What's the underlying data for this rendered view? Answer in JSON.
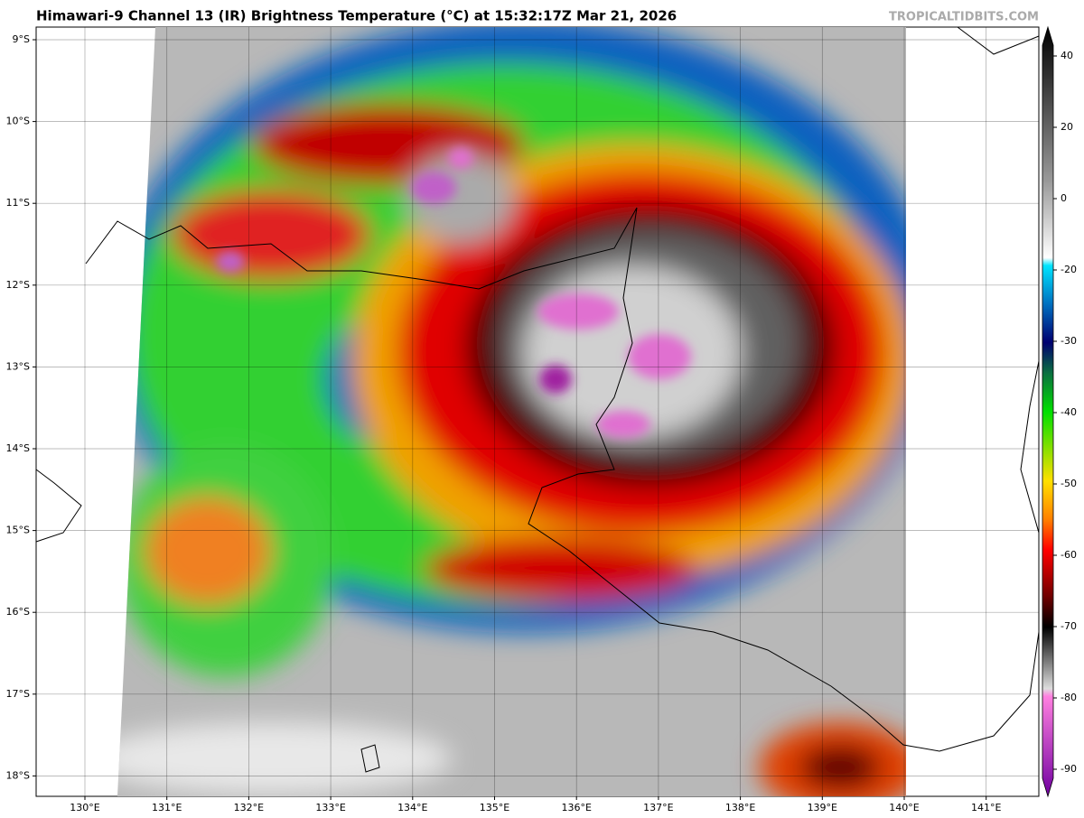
{
  "header": {
    "title": "Himawari-9 Channel 13 (IR) Brightness Temperature (°C) at 15:32:17Z Mar 21, 2026",
    "watermark": "TROPICALTIDBITS.COM"
  },
  "map": {
    "lat_ticks": [
      {
        "value": -9,
        "label": "9°S"
      },
      {
        "value": -10,
        "label": "10°S"
      },
      {
        "value": -11,
        "label": "11°S"
      },
      {
        "value": -12,
        "label": "12°S"
      },
      {
        "value": -13,
        "label": "13°S"
      },
      {
        "value": -14,
        "label": "14°S"
      },
      {
        "value": -15,
        "label": "15°S"
      },
      {
        "value": -16,
        "label": "16°S"
      },
      {
        "value": -17,
        "label": "17°S"
      },
      {
        "value": -18,
        "label": "18°S"
      }
    ],
    "lon_ticks": [
      {
        "value": 130,
        "label": "130°E"
      },
      {
        "value": 131,
        "label": "131°E"
      },
      {
        "value": 132,
        "label": "132°E"
      },
      {
        "value": 133,
        "label": "133°E"
      },
      {
        "value": 134,
        "label": "134°E"
      },
      {
        "value": 135,
        "label": "135°E"
      },
      {
        "value": 136,
        "label": "136°E"
      },
      {
        "value": 137,
        "label": "137°E"
      },
      {
        "value": 138,
        "label": "138°E"
      },
      {
        "value": 139,
        "label": "139°E"
      },
      {
        "value": 140,
        "label": "140°E"
      },
      {
        "value": 141,
        "label": "141°E"
      }
    ]
  },
  "colorbar": {
    "ticks": [
      40,
      20,
      0,
      -20,
      -30,
      -40,
      -50,
      -60,
      -70,
      -80,
      -90
    ]
  }
}
